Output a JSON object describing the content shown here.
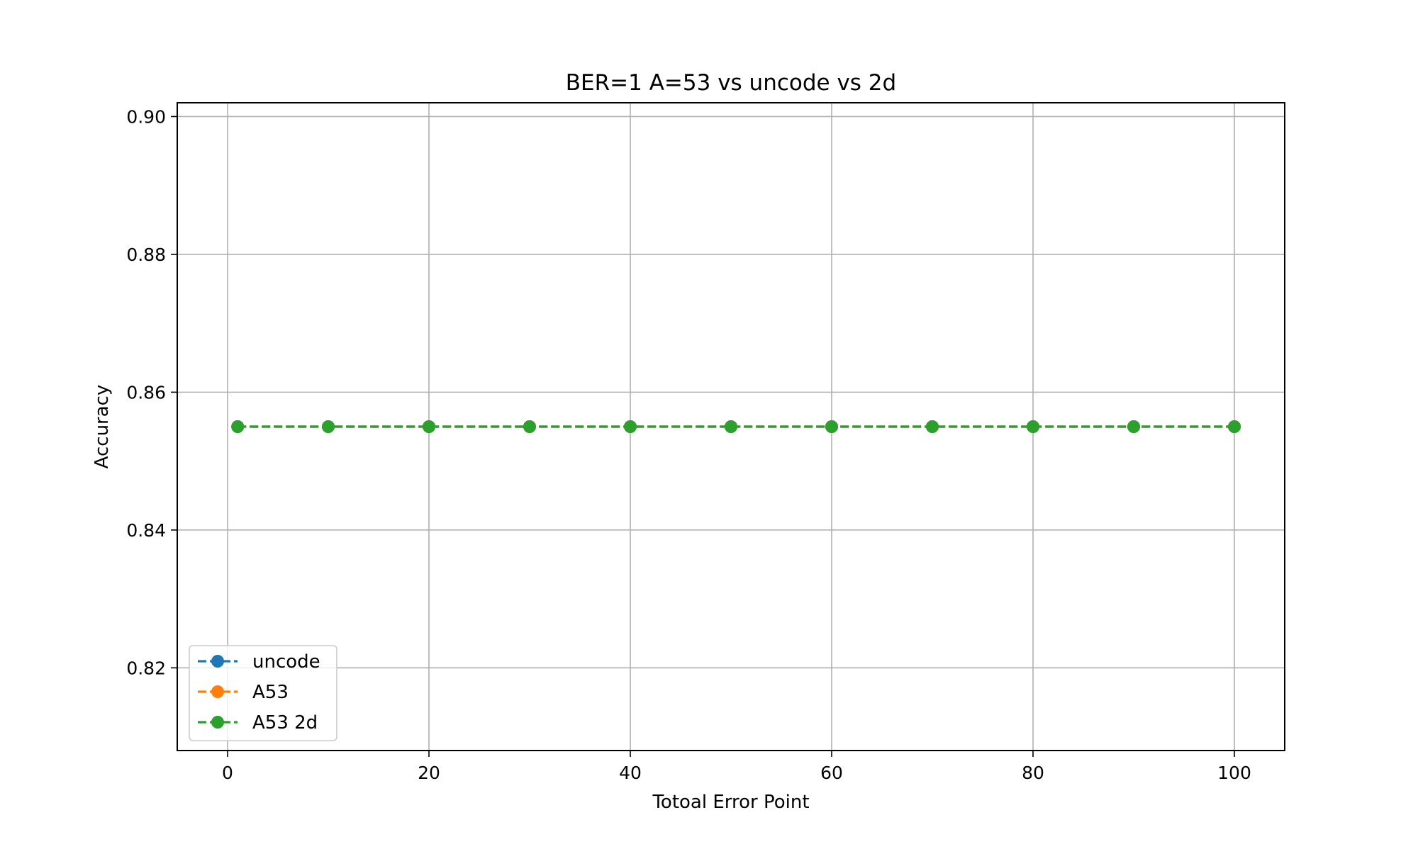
{
  "chart_data": {
    "type": "line",
    "title": "BER=1 A=53 vs uncode vs 2d",
    "xlabel": "Totoal Error Point",
    "ylabel": "Accuracy",
    "xlim": [
      -5,
      105
    ],
    "ylim": [
      0.808,
      0.902
    ],
    "xticks": [
      0,
      20,
      40,
      60,
      80,
      100
    ],
    "yticks": [
      0.82,
      0.84,
      0.86,
      0.88,
      0.9
    ],
    "xtick_labels": [
      "0",
      "20",
      "40",
      "60",
      "80",
      "100"
    ],
    "ytick_labels": [
      "0.82",
      "0.84",
      "0.86",
      "0.88",
      "0.90"
    ],
    "grid": true,
    "legend_position": "lower-left",
    "x": [
      1,
      10,
      20,
      30,
      40,
      50,
      60,
      70,
      80,
      90,
      100
    ],
    "series": [
      {
        "name": "uncode",
        "color": "#1f77b4",
        "line_style": "dashed",
        "marker": "circle",
        "values": [
          0.855,
          0.855,
          0.855,
          0.855,
          0.855,
          0.855,
          0.855,
          0.855,
          0.855,
          0.855,
          0.855
        ]
      },
      {
        "name": "A53",
        "color": "#ff7f0e",
        "line_style": "dashed",
        "marker": "circle",
        "values": [
          0.855,
          0.855,
          0.855,
          0.855,
          0.855,
          0.855,
          0.855,
          0.855,
          0.855,
          0.855,
          0.855
        ]
      },
      {
        "name": "A53 2d",
        "color": "#2ca02c",
        "line_style": "dashed",
        "marker": "circle",
        "values": [
          0.855,
          0.855,
          0.855,
          0.855,
          0.855,
          0.855,
          0.855,
          0.855,
          0.855,
          0.855,
          0.855
        ]
      }
    ]
  }
}
